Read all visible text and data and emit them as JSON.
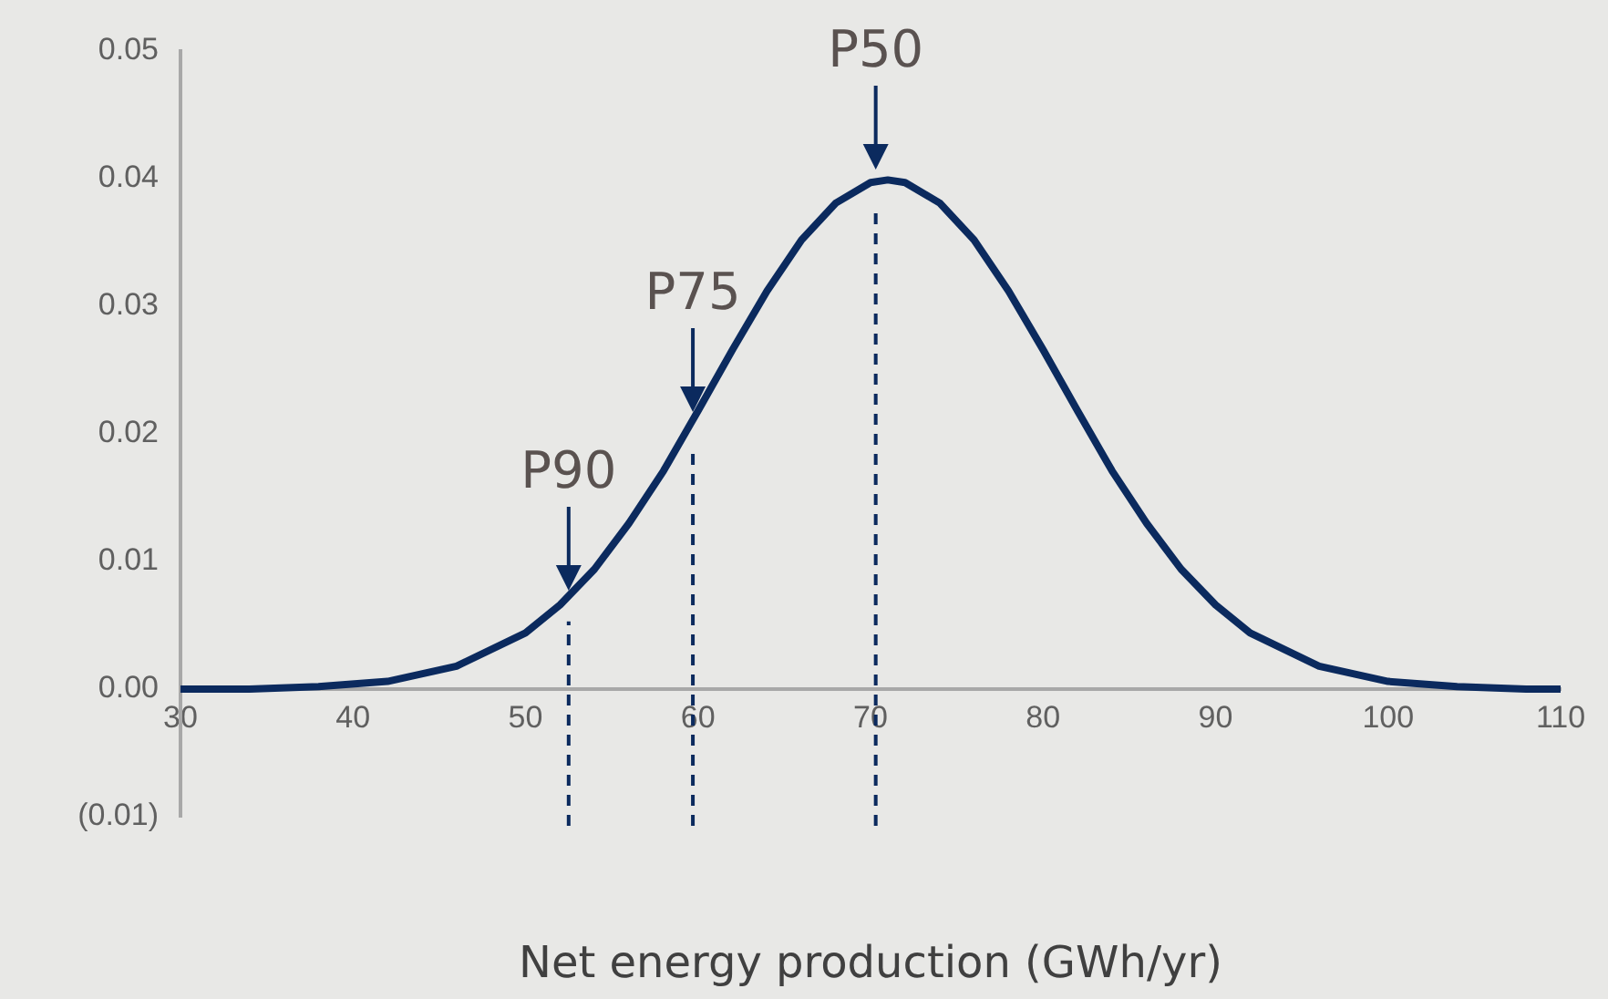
{
  "chart_data": {
    "type": "line",
    "xlabel": "Net energy production (GWh/yr)",
    "x": [
      30,
      34,
      38,
      42,
      46,
      50,
      52,
      54,
      56,
      58,
      60,
      62,
      64,
      66,
      68,
      70,
      71,
      72,
      74,
      76,
      78,
      80,
      82,
      84,
      86,
      88,
      90,
      92,
      96,
      100,
      104,
      108,
      110
    ],
    "series": [
      {
        "color": "#0b2a5e",
        "values": [
          0,
          0.0,
          0.0002,
          0.0006,
          0.0018,
          0.0044,
          0.0066,
          0.0094,
          0.013,
          0.0171,
          0.0218,
          0.0266,
          0.0312,
          0.0352,
          0.0381,
          0.0397,
          0.0399,
          0.0397,
          0.0381,
          0.0352,
          0.0312,
          0.0266,
          0.0218,
          0.0171,
          0.013,
          0.0094,
          0.0066,
          0.0044,
          0.0018,
          0.0006,
          0.0002,
          0,
          0
        ]
      }
    ],
    "xlim": [
      30,
      110
    ],
    "xticks": [
      30,
      40,
      50,
      60,
      70,
      80,
      90,
      100,
      110
    ],
    "ylim": [
      -0.01,
      0.05
    ],
    "yticks": [
      {
        "value": -0.01,
        "label": "(0.01)"
      },
      {
        "value": 0,
        "label": "0.00"
      },
      {
        "value": 0.01,
        "label": "0.01"
      },
      {
        "value": 0.02,
        "label": "0.02"
      },
      {
        "value": 0.03,
        "label": "0.03"
      },
      {
        "value": 0.04,
        "label": "0.04"
      },
      {
        "value": 0.05,
        "label": "0.05"
      }
    ],
    "ref_lines": [
      {
        "axis": "x",
        "value": 52.5,
        "color": "#0b2a5e",
        "line_style": "dashed"
      },
      {
        "axis": "x",
        "value": 59.7,
        "color": "#0b2a5e",
        "line_style": "dashed"
      },
      {
        "axis": "x",
        "value": 70.3,
        "color": "#0b2a5e",
        "line_style": "dashed"
      }
    ],
    "annotations": [
      {
        "text": "P90",
        "x": 52.5,
        "y": 0.007
      },
      {
        "text": "P75",
        "x": 59.7,
        "y": 0.021
      },
      {
        "text": "P50",
        "x": 70.3,
        "y": 0.04
      }
    ],
    "grid": false,
    "legend": false,
    "marker": "none",
    "line_style": "solid"
  }
}
